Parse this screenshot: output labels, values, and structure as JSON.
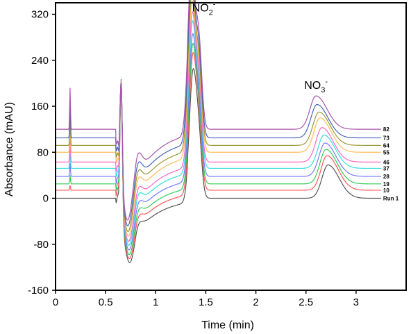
{
  "chart_data": {
    "type": "line",
    "title": "",
    "xlabel": "Time (min)",
    "ylabel": "Absorbance (mAU)",
    "xlim": [
      0,
      3.5
    ],
    "ylim": [
      -160,
      340
    ],
    "x_ticks": [
      "0",
      "0.5",
      "1",
      "1.5",
      "2",
      "2.5",
      "3"
    ],
    "x_tick_values": [
      0,
      0.5,
      1,
      1.5,
      2,
      2.5,
      3
    ],
    "y_ticks": [
      "-160",
      "-80",
      "0",
      "80",
      "160",
      "240",
      "320"
    ],
    "y_tick_values": [
      -160,
      -80,
      0,
      80,
      160,
      240,
      320
    ],
    "grid": false,
    "annotations": [
      {
        "text": "NO",
        "sub": "2",
        "sup": "-",
        "x": 1.48,
        "y": 325
      },
      {
        "text": "NO",
        "sub": "3",
        "sup": "-",
        "x": 2.6,
        "y": 190
      }
    ],
    "series": [
      {
        "name": "Run 1",
        "color": "#555555",
        "offset": 0,
        "peak1": 240,
        "peak2": 210,
        "peak3": 58,
        "dip": -112,
        "peak3_time": 2.72
      },
      {
        "name": "10",
        "color": "#ff5555",
        "offset": 14,
        "peak1": 240,
        "peak2": 230,
        "peak3": 60,
        "dip": -105,
        "peak3_time": 2.71
      },
      {
        "name": "19",
        "color": "#33cc55",
        "offset": 25,
        "peak1": 240,
        "peak2": 240,
        "peak3": 60,
        "dip": -98,
        "peak3_time": 2.7
      },
      {
        "name": "28",
        "color": "#7777ff",
        "offset": 38,
        "peak1": 235,
        "peak2": 250,
        "peak3": 58,
        "dip": -90,
        "peak3_time": 2.69
      },
      {
        "name": "37",
        "color": "#33dddd",
        "offset": 52,
        "peak1": 230,
        "peak2": 265,
        "peak3": 58,
        "dip": -82,
        "peak3_time": 2.68
      },
      {
        "name": "46",
        "color": "#ff66cc",
        "offset": 63,
        "peak1": 225,
        "peak2": 275,
        "peak3": 60,
        "dip": -75,
        "peak3_time": 2.66
      },
      {
        "name": "55",
        "color": "#ffbb55",
        "offset": 80,
        "peak1": 220,
        "peak2": 285,
        "peak3": 60,
        "dip": -66,
        "peak3_time": 2.64
      },
      {
        "name": "64",
        "color": "#999933",
        "offset": 92,
        "peak1": 215,
        "peak2": 295,
        "peak3": 58,
        "dip": -58,
        "peak3_time": 2.63
      },
      {
        "name": "73",
        "color": "#4466bb",
        "offset": 105,
        "peak1": 210,
        "peak2": 310,
        "peak3": 58,
        "dip": -48,
        "peak3_time": 2.61
      },
      {
        "name": "82",
        "color": "#aa55aa",
        "offset": 120,
        "peak1": 205,
        "peak2": 325,
        "peak3": 58,
        "dip": -38,
        "peak3_time": 2.6
      }
    ]
  }
}
